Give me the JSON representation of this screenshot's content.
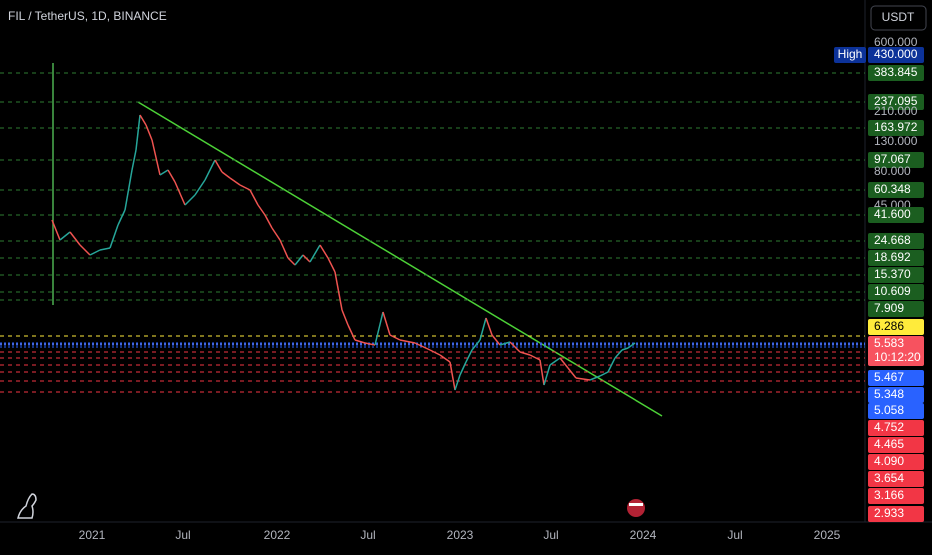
{
  "header": {
    "symbol": "FIL / TetherUS, 1D, BINANCE",
    "currency": "USDT"
  },
  "price_scale": {
    "high_badge": "High",
    "countdown": "10:12:20",
    "labels": [
      "600.000",
      "430.000",
      "383.845",
      "237.095",
      "210.000",
      "163.972",
      "130.000",
      "97.067",
      "80.000",
      "60.348",
      "45.000",
      "41.600",
      "24.668",
      "18.692",
      "15.370",
      "10.609",
      "7.909",
      "6.286",
      "5.583",
      "5.467",
      "5.348",
      "5.058",
      "4.752",
      "4.465",
      "4.090",
      "3.654",
      "3.166",
      "2.933"
    ]
  },
  "time_axis": {
    "labels": [
      "2021",
      "Jul",
      "2022",
      "Jul",
      "2023",
      "Jul",
      "2024",
      "Jul",
      "2025"
    ]
  }
}
